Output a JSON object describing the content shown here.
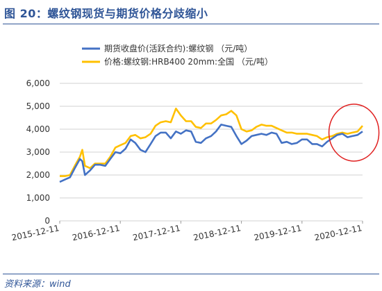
{
  "figure": {
    "title": "图 20：螺纹钢现货与期货价格分歧缩小",
    "source": "资料来源：wind"
  },
  "colors": {
    "futures": "#4472c4",
    "spot": "#ffc000",
    "highlight": "#e02020",
    "grid": "#d0d0d0",
    "title": "#2f5597"
  },
  "chart_data": {
    "type": "line",
    "title": "",
    "xlabel": "",
    "ylabel": "",
    "ylim": [
      0,
      6000
    ],
    "yticks": [
      "0",
      "1,000",
      "2,000",
      "3,000",
      "4,000",
      "5,000",
      "6,000"
    ],
    "xticks": [
      "2015-12-11",
      "2016-12-11",
      "2017-12-11",
      "2018-12-11",
      "2019-12-11",
      "2020-12-11"
    ],
    "x_range": [
      "2015-12-11",
      "2020-12-11"
    ],
    "grid": "horizontal",
    "legend_position": "top",
    "annotation": "red circle highlighting the end of 2020 where the two series converge",
    "series": [
      {
        "name": "期货收盘价(活跃合约):螺纹钢  （元/吨）",
        "color": "#4472c4",
        "points": [
          [
            "2015-12-11",
            1700
          ],
          [
            "2016-01-11",
            1800
          ],
          [
            "2016-02-11",
            1900
          ],
          [
            "2016-03-11",
            2300
          ],
          [
            "2016-04-11",
            2700
          ],
          [
            "2016-04-25",
            2600
          ],
          [
            "2016-05-11",
            2000
          ],
          [
            "2016-06-11",
            2200
          ],
          [
            "2016-07-11",
            2450
          ],
          [
            "2016-08-11",
            2450
          ],
          [
            "2016-09-11",
            2400
          ],
          [
            "2016-10-11",
            2700
          ],
          [
            "2016-11-11",
            3000
          ],
          [
            "2016-12-11",
            2950
          ],
          [
            "2017-01-11",
            3150
          ],
          [
            "2017-02-11",
            3550
          ],
          [
            "2017-03-11",
            3400
          ],
          [
            "2017-04-11",
            3100
          ],
          [
            "2017-05-11",
            3000
          ],
          [
            "2017-06-11",
            3350
          ],
          [
            "2017-07-11",
            3700
          ],
          [
            "2017-08-11",
            3850
          ],
          [
            "2017-09-11",
            3850
          ],
          [
            "2017-10-11",
            3600
          ],
          [
            "2017-11-11",
            3900
          ],
          [
            "2017-12-11",
            3800
          ],
          [
            "2018-01-11",
            3950
          ],
          [
            "2018-02-11",
            3900
          ],
          [
            "2018-03-11",
            3450
          ],
          [
            "2018-04-11",
            3400
          ],
          [
            "2018-05-11",
            3600
          ],
          [
            "2018-06-11",
            3700
          ],
          [
            "2018-07-11",
            3900
          ],
          [
            "2018-08-11",
            4200
          ],
          [
            "2018-09-11",
            4150
          ],
          [
            "2018-10-11",
            4100
          ],
          [
            "2018-11-11",
            3700
          ],
          [
            "2018-12-11",
            3350
          ],
          [
            "2019-01-11",
            3500
          ],
          [
            "2019-02-11",
            3700
          ],
          [
            "2019-03-11",
            3750
          ],
          [
            "2019-04-11",
            3800
          ],
          [
            "2019-05-11",
            3750
          ],
          [
            "2019-06-11",
            3850
          ],
          [
            "2019-07-11",
            3800
          ],
          [
            "2019-08-11",
            3400
          ],
          [
            "2019-09-11",
            3450
          ],
          [
            "2019-10-11",
            3350
          ],
          [
            "2019-11-11",
            3400
          ],
          [
            "2019-12-11",
            3550
          ],
          [
            "2020-01-11",
            3550
          ],
          [
            "2020-02-11",
            3350
          ],
          [
            "2020-03-11",
            3350
          ],
          [
            "2020-04-11",
            3250
          ],
          [
            "2020-05-11",
            3450
          ],
          [
            "2020-06-11",
            3600
          ],
          [
            "2020-07-11",
            3750
          ],
          [
            "2020-08-11",
            3800
          ],
          [
            "2020-09-11",
            3650
          ],
          [
            "2020-10-11",
            3700
          ],
          [
            "2020-11-11",
            3750
          ],
          [
            "2020-12-11",
            3900
          ]
        ]
      },
      {
        "name": "价格:螺纹钢:HRB400 20mm:全国  （元/吨）",
        "color": "#ffc000",
        "points": [
          [
            "2015-12-11",
            1950
          ],
          [
            "2016-01-11",
            1950
          ],
          [
            "2016-02-11",
            2000
          ],
          [
            "2016-03-11",
            2400
          ],
          [
            "2016-04-11",
            2800
          ],
          [
            "2016-04-25",
            3100
          ],
          [
            "2016-05-11",
            2400
          ],
          [
            "2016-06-11",
            2300
          ],
          [
            "2016-07-11",
            2500
          ],
          [
            "2016-08-11",
            2500
          ],
          [
            "2016-09-11",
            2500
          ],
          [
            "2016-10-11",
            2800
          ],
          [
            "2016-11-11",
            3200
          ],
          [
            "2016-12-11",
            3300
          ],
          [
            "2017-01-11",
            3400
          ],
          [
            "2017-02-11",
            3700
          ],
          [
            "2017-03-11",
            3750
          ],
          [
            "2017-04-11",
            3600
          ],
          [
            "2017-05-11",
            3650
          ],
          [
            "2017-06-11",
            3800
          ],
          [
            "2017-07-11",
            4150
          ],
          [
            "2017-08-11",
            4300
          ],
          [
            "2017-09-11",
            4350
          ],
          [
            "2017-10-11",
            4300
          ],
          [
            "2017-11-11",
            4900
          ],
          [
            "2017-12-11",
            4600
          ],
          [
            "2018-01-11",
            4350
          ],
          [
            "2018-02-11",
            4350
          ],
          [
            "2018-03-11",
            4100
          ],
          [
            "2018-04-11",
            4050
          ],
          [
            "2018-05-11",
            4250
          ],
          [
            "2018-06-11",
            4250
          ],
          [
            "2018-07-11",
            4400
          ],
          [
            "2018-08-11",
            4600
          ],
          [
            "2018-09-11",
            4650
          ],
          [
            "2018-10-11",
            4800
          ],
          [
            "2018-11-11",
            4600
          ],
          [
            "2018-12-11",
            4000
          ],
          [
            "2019-01-11",
            3900
          ],
          [
            "2019-02-11",
            3950
          ],
          [
            "2019-03-11",
            4100
          ],
          [
            "2019-04-11",
            4200
          ],
          [
            "2019-05-11",
            4150
          ],
          [
            "2019-06-11",
            4150
          ],
          [
            "2019-07-11",
            4050
          ],
          [
            "2019-08-11",
            3950
          ],
          [
            "2019-09-11",
            3850
          ],
          [
            "2019-10-11",
            3850
          ],
          [
            "2019-11-11",
            3800
          ],
          [
            "2019-12-11",
            3800
          ],
          [
            "2020-01-11",
            3800
          ],
          [
            "2020-02-11",
            3750
          ],
          [
            "2020-03-11",
            3700
          ],
          [
            "2020-04-11",
            3550
          ],
          [
            "2020-05-11",
            3650
          ],
          [
            "2020-06-11",
            3700
          ],
          [
            "2020-07-11",
            3800
          ],
          [
            "2020-08-11",
            3850
          ],
          [
            "2020-09-11",
            3800
          ],
          [
            "2020-10-11",
            3850
          ],
          [
            "2020-11-11",
            3900
          ],
          [
            "2020-12-11",
            4150
          ]
        ]
      }
    ]
  }
}
